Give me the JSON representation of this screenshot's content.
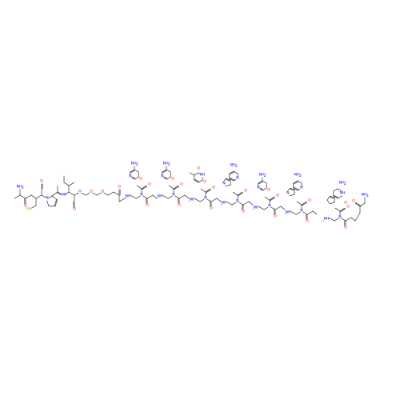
{
  "diagram": {
    "type": "chemical-structure",
    "colors": {
      "bond": "#000000",
      "O": "#ff0000",
      "N": "#0000ff",
      "S": "#b8a000",
      "C": "#000000",
      "background": "#ffffff"
    },
    "labels": {
      "nh2": "NH",
      "sub2": "2",
      "o": "O",
      "n": "N",
      "hn": "HN",
      "nh": "NH",
      "h": "H",
      "sh": "HS"
    }
  }
}
